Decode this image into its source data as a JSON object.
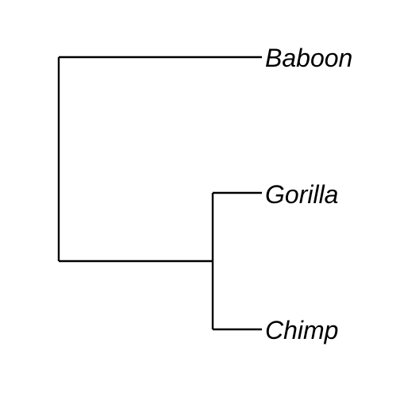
{
  "tree": {
    "layout": "rectangular-cladogram",
    "line_color": "#000000",
    "label_color": "#000000",
    "label_style": "italic",
    "newick": "(Baboon,(Gorilla,Chimp));",
    "taxa": [
      {
        "label": "Baboon"
      },
      {
        "label": "Gorilla"
      },
      {
        "label": "Chimp"
      }
    ]
  }
}
